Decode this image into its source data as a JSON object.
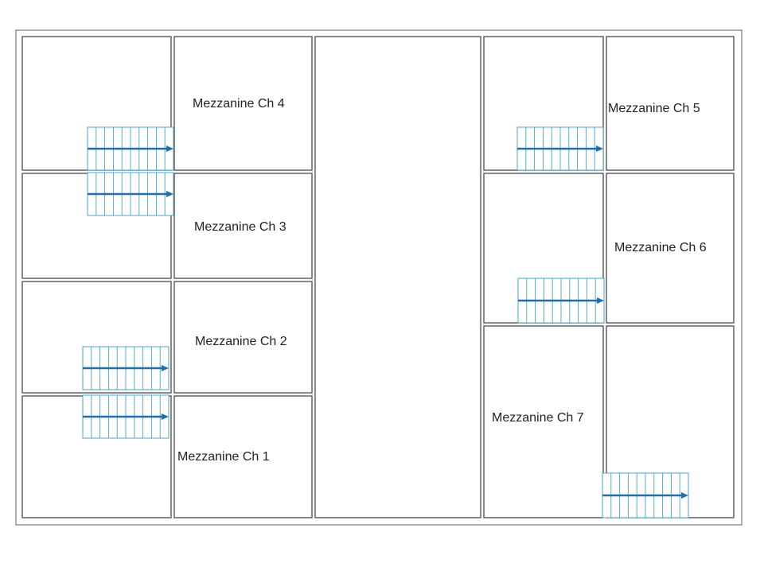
{
  "colors": {
    "wall": "#555555",
    "outer_wall": "#9a9a9a",
    "stair_outline": "#4aa3c7",
    "stair_arrow": "#1f6fa8",
    "label_text": "#222222"
  },
  "rooms": [
    {
      "id": "ch4",
      "label": "Mezzanine Ch 4"
    },
    {
      "id": "ch3",
      "label": "Mezzanine Ch 3"
    },
    {
      "id": "ch2",
      "label": "Mezzanine Ch 2"
    },
    {
      "id": "ch1",
      "label": "Mezzanine Ch 1"
    },
    {
      "id": "ch5",
      "label": "Mezzanine Ch 5"
    },
    {
      "id": "ch6",
      "label": "Mezzanine Ch 6"
    },
    {
      "id": "ch7",
      "label": "Mezzanine Ch 7"
    }
  ],
  "stairs": [
    {
      "id": "stair-ch4",
      "direction": "right",
      "treads": 10
    },
    {
      "id": "stair-ch3",
      "direction": "right",
      "treads": 10
    },
    {
      "id": "stair-ch2",
      "direction": "right",
      "treads": 10
    },
    {
      "id": "stair-ch1",
      "direction": "right",
      "treads": 10
    },
    {
      "id": "stair-ch5",
      "direction": "right",
      "treads": 10
    },
    {
      "id": "stair-ch6",
      "direction": "right",
      "treads": 10
    },
    {
      "id": "stair-ch7",
      "direction": "right",
      "treads": 10
    }
  ]
}
